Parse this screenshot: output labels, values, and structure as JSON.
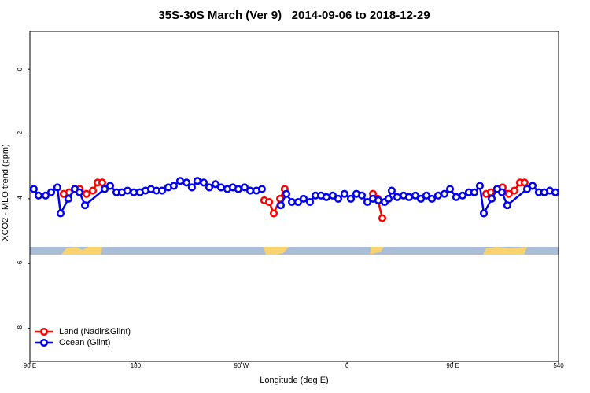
{
  "chart_data": {
    "type": "line",
    "title": "35S-30S March (Ver 9)   2014-09-06 to 2018-12-29",
    "x_label": "Longitude (deg E)",
    "y_label": "XCO2 - MLO trend (ppm)",
    "xlim": [
      90,
      540
    ],
    "xticks": [
      {
        "value": 90,
        "label": "90 E"
      },
      180,
      {
        "value": 270,
        "label": "90 W"
      },
      {
        "value": 360,
        "label": "0"
      },
      {
        "value": 450,
        "label": "90 E"
      },
      540
    ],
    "ylim": [
      -9.03,
      1.17
    ],
    "yticks": [
      0,
      -2,
      -4,
      -6,
      -8
    ],
    "legend": "bottom-left",
    "series": [
      {
        "name": "Land (Nadir&Glint)",
        "color": "#ff0000",
        "x": [
          118.8,
          123.5,
          128.2,
          132.5,
          138.2,
          143.6,
          147.6,
          151.6,
          218.6,
          289.5,
          293.6,
          297.6,
          303.0,
          306.9,
          345.8,
          382.0,
          386.0,
          390.0,
          432.9,
          478.4,
          482.4,
          487.7,
          492.4,
          497.7,
          502.4,
          507.1,
          511.1
        ],
        "values": [
          -3.85,
          -3.8,
          -3.7,
          -3.7,
          -3.85,
          -3.75,
          -3.5,
          -3.5,
          null,
          -4.05,
          -4.1,
          -4.45,
          -4.0,
          -3.7,
          null,
          -3.85,
          -4.0,
          -4.6,
          null,
          -3.85,
          -3.8,
          -3.7,
          -3.65,
          -3.85,
          -3.75,
          -3.5,
          -3.5
        ]
      },
      {
        "name": "Ocean (Glint)",
        "color": "#0000ee",
        "x": [
          93.3,
          97.4,
          103.4,
          108.1,
          113.4,
          116.1,
          122.8,
          128.2,
          132.2,
          136.9,
          153.6,
          158.3,
          163.7,
          168.3,
          173.0,
          178.4,
          183.7,
          188.4,
          193.1,
          197.8,
          202.5,
          207.8,
          212.5,
          217.9,
          223.3,
          227.9,
          232.6,
          238.0,
          242.7,
          248.0,
          252.7,
          258.1,
          262.8,
          267.4,
          272.8,
          277.5,
          282.8,
          287.5,
          295.6,
          303.6,
          308.3,
          313.0,
          318.3,
          323.0,
          328.4,
          333.1,
          337.8,
          342.4,
          347.8,
          352.5,
          357.8,
          363.2,
          367.9,
          372.6,
          377.3,
          382.0,
          386.6,
          392.0,
          395.3,
          398.0,
          402.7,
          408.1,
          412.7,
          418.1,
          422.8,
          427.5,
          432.2,
          437.5,
          442.9,
          447.6,
          452.9,
          458.3,
          463.6,
          468.3,
          473.0,
          476.4,
          483.1,
          487.7,
          491.8,
          496.4,
          513.2,
          517.9,
          523.2,
          527.9,
          532.6,
          537.3
        ],
        "values": [
          -3.7,
          -3.9,
          -3.9,
          -3.8,
          -3.65,
          -4.45,
          -4.0,
          -3.7,
          -3.8,
          -4.2,
          -3.7,
          -3.6,
          -3.8,
          -3.8,
          -3.75,
          -3.8,
          -3.8,
          -3.75,
          -3.7,
          -3.75,
          -3.75,
          -3.65,
          -3.6,
          -3.45,
          -3.5,
          -3.65,
          -3.45,
          -3.5,
          -3.65,
          -3.55,
          -3.65,
          -3.7,
          -3.65,
          -3.7,
          -3.65,
          -3.75,
          -3.75,
          -3.7,
          null,
          -4.2,
          -3.85,
          -4.1,
          -4.1,
          -4.0,
          -4.1,
          -3.9,
          -3.9,
          -3.95,
          -3.9,
          -4.0,
          -3.85,
          -4.0,
          -3.85,
          -3.9,
          -4.1,
          -4.0,
          -4.05,
          -4.1,
          -4.0,
          -3.75,
          -3.95,
          -3.9,
          -3.95,
          -3.9,
          -4.0,
          -3.9,
          -4.0,
          -3.9,
          -3.85,
          -3.7,
          -3.95,
          -3.9,
          -3.8,
          -3.8,
          -3.6,
          -4.45,
          -4.0,
          -3.7,
          -3.8,
          -4.2,
          -3.7,
          -3.6,
          -3.8,
          -3.8,
          -3.75,
          -3.8
        ]
      }
    ]
  }
}
